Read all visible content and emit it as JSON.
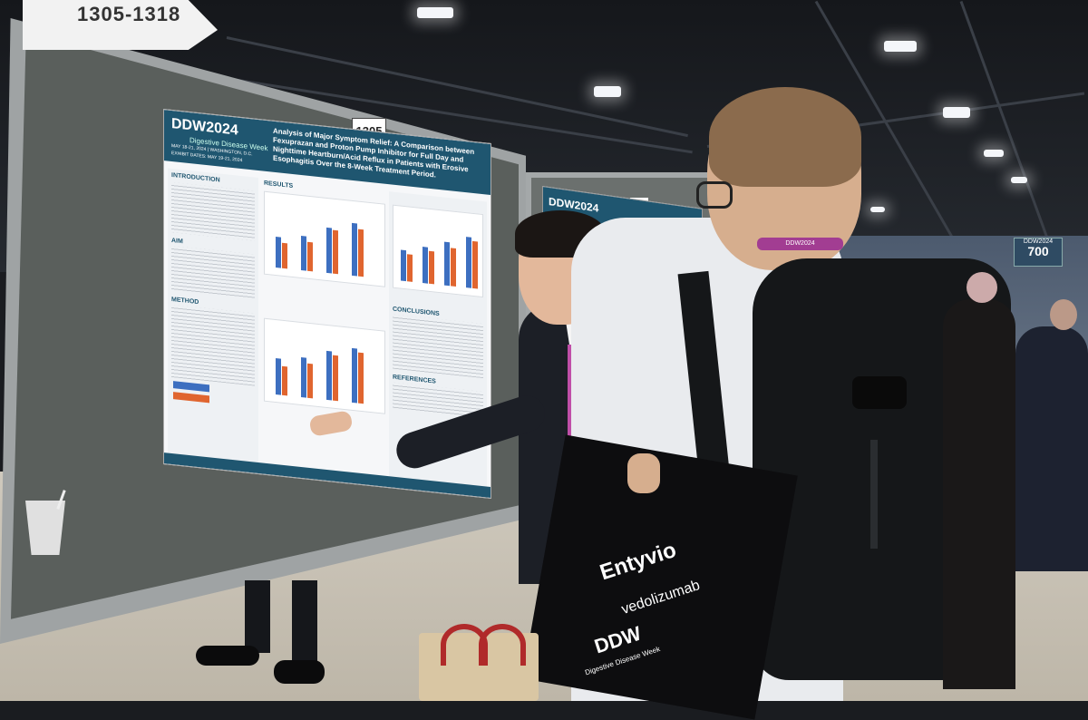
{
  "aisle_sign": {
    "text": "1305-1318"
  },
  "booth_number": "1305",
  "booth_number_2": "1306",
  "hall_sign": {
    "brand": "DDW2024",
    "number": "700"
  },
  "poster": {
    "logo": "DDW2024",
    "logo_sub": "Digestive Disease Week",
    "event_dates": "MAY 18-21, 2024 | WASHINGTON, D.C.",
    "exhibit_dates": "EXHIBIT DATES: MAY 19-21, 2024",
    "title": "Analysis of Major Symptom Relief: A Comparison between Fexuprazan and Proton Pump Inhibitor for Full Day and Nighttime Heartburn/Acid Reflux in Patients with Erosive Esophagitis Over the 8-Week Treatment Period.",
    "sections": {
      "introduction": "INTRODUCTION",
      "aim": "AIM",
      "method": "METHOD",
      "results": "RESULTS",
      "conclusions": "CONCLUSIONS",
      "references": "REFERENCES"
    }
  },
  "poster_2": {
    "logo": "DDW2024"
  },
  "lanyard_text": "DDW2024",
  "tote_bag": {
    "brand": "Entyvio",
    "sub": "vedolizumab",
    "logo": "DDW",
    "logo_sub": "Digestive Disease Week"
  },
  "colors": {
    "poster_header": "#1f5670",
    "bar_blue": "#3d6fc0",
    "bar_orange": "#e0652f",
    "lanyard": "#a23d92"
  }
}
